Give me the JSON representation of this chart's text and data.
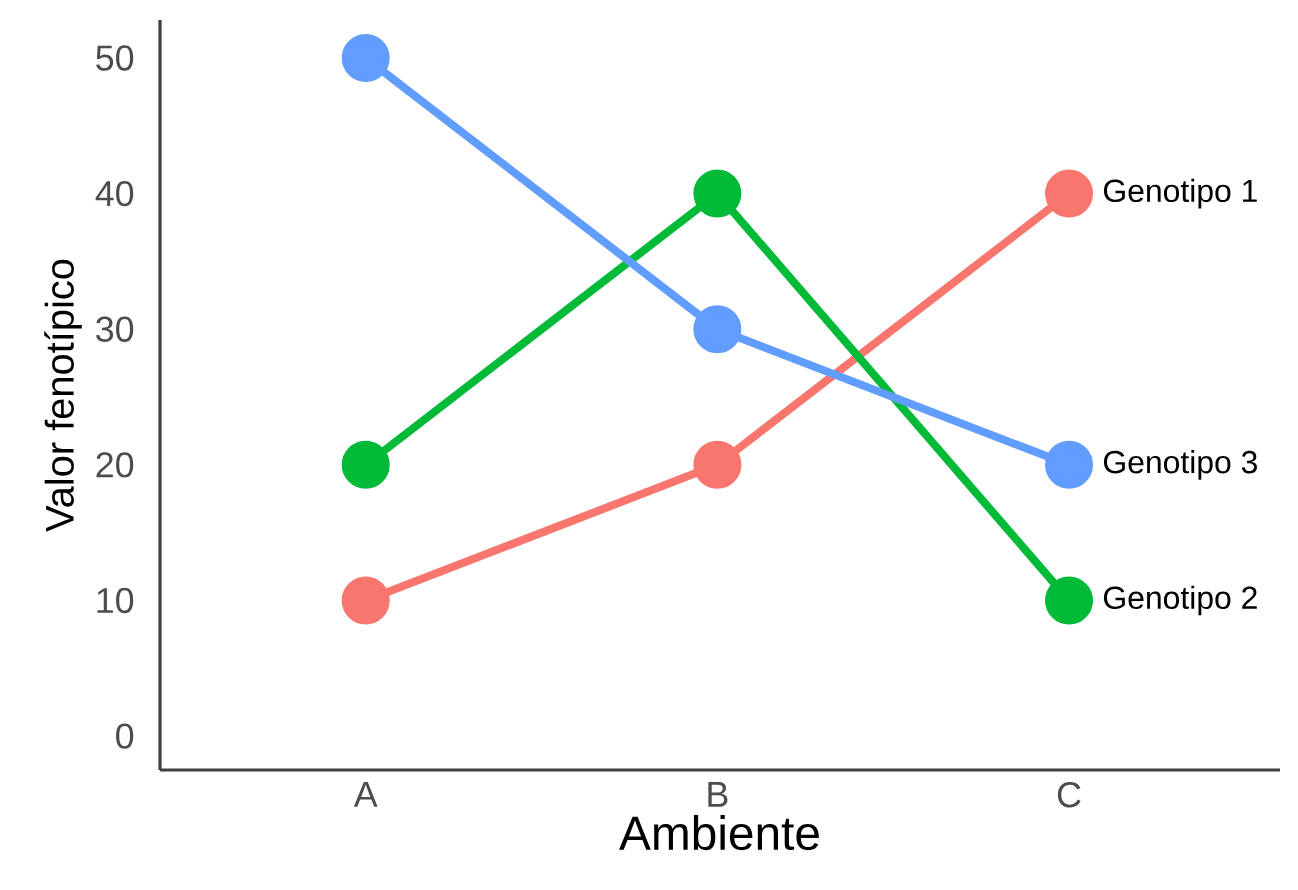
{
  "chart_data": {
    "type": "line",
    "xlabel": "Ambiente",
    "ylabel": "Valor fenotípico",
    "categories": [
      "A",
      "B",
      "C"
    ],
    "series": [
      {
        "name": "Genotipo 1",
        "color": "#f8766d",
        "values": [
          10,
          20,
          40
        ]
      },
      {
        "name": "Genotipo 2",
        "color": "#00ba38",
        "values": [
          20,
          40,
          10
        ]
      },
      {
        "name": "Genotipo 3",
        "color": "#619cff",
        "values": [
          50,
          30,
          20
        ]
      }
    ],
    "ylim": [
      -2.5,
      52.8
    ],
    "yticks": [
      0,
      10,
      20,
      30,
      40,
      50
    ],
    "grid": false,
    "legend": false,
    "marker": "circle",
    "line_style": "solid"
  }
}
